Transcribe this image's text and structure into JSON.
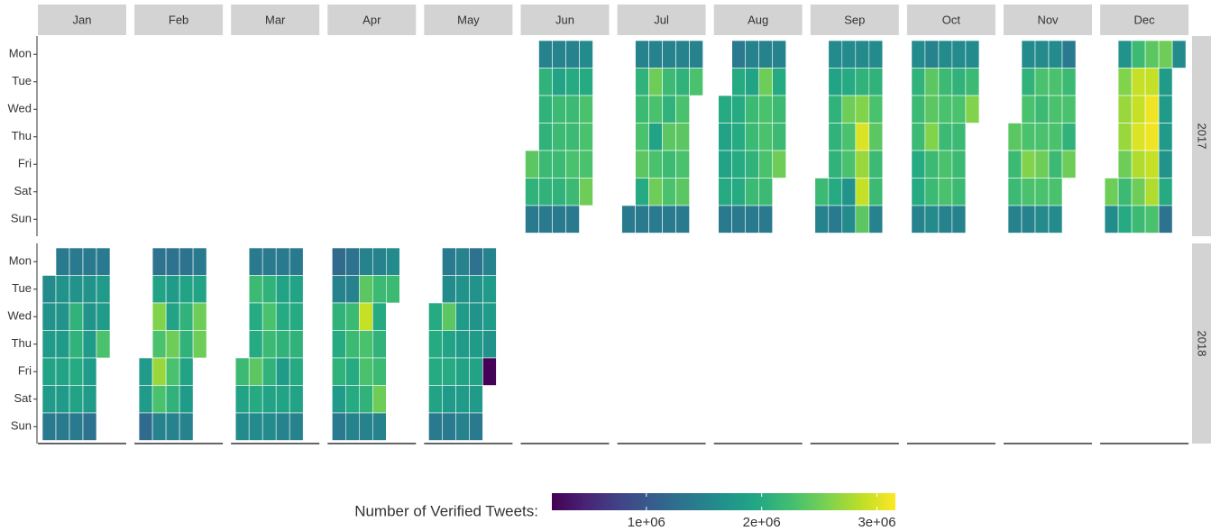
{
  "chart_data": {
    "type": "calendar_heatmap",
    "months": [
      "Jan",
      "Feb",
      "Mar",
      "Apr",
      "May",
      "Jun",
      "Jul",
      "Aug",
      "Sep",
      "Oct",
      "Nov",
      "Dec"
    ],
    "weekdays": [
      "Mon",
      "Tue",
      "Wed",
      "Thu",
      "Fri",
      "Sat",
      "Sun"
    ],
    "legend_title": "Number of Verified Tweets:",
    "clim": [
      180000,
      3160000
    ],
    "cticks": [
      {
        "value": 1000000,
        "label": "1e+06"
      },
      {
        "value": 2000000,
        "label": "2e+06"
      },
      {
        "value": 3000000,
        "label": "3e+06"
      }
    ],
    "colors": [
      "#440154",
      "#482475",
      "#414487",
      "#355f8d",
      "#2a788e",
      "#21918c",
      "#22a884",
      "#44bf70",
      "#7ad151",
      "#bddf26",
      "#fde725"
    ],
    "series": [
      {
        "name": "2017",
        "values": [
          null,
          null,
          null,
          null,
          null,
          [
            [
              null,
              null,
              null,
              null,
              2400000.0,
              2100000.0,
              1400000.0
            ],
            [
              1500000.0,
              2100000.0,
              2100000.0,
              2100000.0,
              2200000.0,
              2100000.0,
              1400000.0
            ],
            [
              1500000.0,
              1900000.0,
              2200000.0,
              2200000.0,
              2200000.0,
              2100000.0,
              1400000.0
            ],
            [
              1500000.0,
              2000000.0,
              2200000.0,
              2200000.0,
              2300000.0,
              2200000.0,
              1400000.0
            ],
            [
              1600000.0,
              2000000.0,
              2300000.0,
              2300000.0,
              2300000.0,
              2500000.0,
              null
            ]
          ],
          [
            [
              null,
              null,
              null,
              null,
              null,
              null,
              1400000.0
            ],
            [
              1500000.0,
              2100000.0,
              2200000.0,
              2300000.0,
              2400000.0,
              2000000.0,
              1400000.0
            ],
            [
              1500000.0,
              2500000.0,
              2300000.0,
              1900000.0,
              2300000.0,
              2500000.0,
              1400000.0
            ],
            [
              1500000.0,
              2200000.0,
              2100000.0,
              2400000.0,
              2200000.0,
              2300000.0,
              1400000.0
            ],
            [
              1500000.0,
              2100000.0,
              2300000.0,
              2400000.0,
              2300000.0,
              2400000.0,
              1400000.0
            ],
            [
              1500000.0,
              2300000.0,
              null,
              null,
              null,
              null,
              null
            ]
          ],
          [
            [
              null,
              null,
              2000000.0,
              1900000.0,
              1900000.0,
              2000000.0,
              1400000.0
            ],
            [
              1400000.0,
              2000000.0,
              2000000.0,
              2000000.0,
              2000000.0,
              2000000.0,
              1400000.0
            ],
            [
              1500000.0,
              1900000.0,
              2200000.0,
              2200000.0,
              2100000.0,
              2200000.0,
              1400000.0
            ],
            [
              1500000.0,
              2500000.0,
              2300000.0,
              2300000.0,
              2300000.0,
              2200000.0,
              1400000.0
            ],
            [
              1500000.0,
              2000000.0,
              2200000.0,
              2200000.0,
              2500000.0,
              null,
              null
            ]
          ],
          [
            [
              null,
              null,
              null,
              null,
              null,
              2200000.0,
              1500000.0
            ],
            [
              1600000.0,
              1900000.0,
              2100000.0,
              2100000.0,
              2100000.0,
              2000000.0,
              1400000.0
            ],
            [
              1600000.0,
              2000000.0,
              2500000.0,
              2300000.0,
              2300000.0,
              1700000.0,
              1600000.0
            ],
            [
              1600000.0,
              2100000.0,
              2600000.0,
              3000000.0,
              2700000.0,
              2900000.0,
              2400000.0
            ],
            [
              1600000.0,
              2100000.0,
              2300000.0,
              2400000.0,
              2200000.0,
              2200000.0,
              1500000.0
            ]
          ],
          [
            [
              1600000.0,
              2100000.0,
              2200000.0,
              2200000.0,
              2000000.0,
              2000000.0,
              1500000.0
            ],
            [
              1500000.0,
              2400000.0,
              2400000.0,
              2600000.0,
              2200000.0,
              2200000.0,
              1600000.0
            ],
            [
              1600000.0,
              2200000.0,
              2300000.0,
              2200000.0,
              2300000.0,
              2300000.0,
              1500000.0
            ],
            [
              1600000.0,
              2100000.0,
              2300000.0,
              2200000.0,
              2200000.0,
              2200000.0,
              1500000.0
            ],
            [
              1600000.0,
              2200000.0,
              2600000.0,
              null,
              null,
              null,
              null
            ]
          ],
          [
            [
              null,
              null,
              null,
              2400000.0,
              2200000.0,
              2200000.0,
              1500000.0
            ],
            [
              1600000.0,
              2100000.0,
              2300000.0,
              2300000.0,
              2600000.0,
              2300000.0,
              1500000.0
            ],
            [
              1600000.0,
              2300000.0,
              2200000.0,
              2300000.0,
              2500000.0,
              2300000.0,
              1600000.0
            ],
            [
              1600000.0,
              2300000.0,
              2300000.0,
              2300000.0,
              2200000.0,
              2300000.0,
              1600000.0
            ],
            [
              1400000.0,
              2200000.0,
              2300000.0,
              2100000.0,
              2500000.0,
              null,
              null
            ]
          ],
          [
            [
              null,
              null,
              null,
              null,
              null,
              2500000.0,
              1600000.0
            ],
            [
              1700000.0,
              2600000.0,
              2700000.0,
              2700000.0,
              2500000.0,
              2200000.0,
              2000000.0
            ],
            [
              2200000.0,
              2900000.0,
              2900000.0,
              3000000.0,
              2800000.0,
              2500000.0,
              2200000.0
            ],
            [
              2400000.0,
              2900000.0,
              3100000.0,
              3100000.0,
              2900000.0,
              2800000.0,
              2300000.0
            ],
            [
              2500000.0,
              1800000.0,
              1800000.0,
              1800000.0,
              1700000.0,
              2000000.0,
              1300000.0
            ],
            [
              1600000.0,
              null,
              null,
              null,
              null,
              null,
              null
            ]
          ]
        ]
      },
      {
        "name": "2018",
        "values": [
          [
            [
              null,
              1600000.0,
              1700000.0,
              1800000.0,
              1900000.0,
              1800000.0,
              1400000.0
            ],
            [
              1400000.0,
              1700000.0,
              1700000.0,
              1800000.0,
              1900000.0,
              1800000.0,
              1400000.0
            ],
            [
              1400000.0,
              1700000.0,
              2100000.0,
              2100000.0,
              2000000.0,
              1900000.0,
              1400000.0
            ],
            [
              1400000.0,
              1700000.0,
              1700000.0,
              1800000.0,
              1800000.0,
              1800000.0,
              1300000.0
            ],
            [
              1400000.0,
              1800000.0,
              1800000.0,
              2300000.0,
              null,
              null,
              null
            ]
          ],
          [
            [
              null,
              null,
              null,
              null,
              1800000.0,
              1800000.0,
              1200000.0
            ],
            [
              1300000.0,
              1900000.0,
              2600000.0,
              2300000.0,
              2700000.0,
              2300000.0,
              1500000.0
            ],
            [
              1300000.0,
              1800000.0,
              1900000.0,
              2500000.0,
              2300000.0,
              2100000.0,
              1500000.0
            ],
            [
              1300000.0,
              1900000.0,
              2100000.0,
              2100000.0,
              1900000.0,
              1800000.0,
              1500000.0
            ],
            [
              1400000.0,
              1900000.0,
              2500000.0,
              2500000.0,
              null,
              null,
              null
            ]
          ],
          [
            [
              null,
              null,
              null,
              null,
              2200000.0,
              1900000.0,
              1600000.0
            ],
            [
              1400000.0,
              2200000.0,
              2000000.0,
              2000000.0,
              2400000.0,
              2000000.0,
              1600000.0
            ],
            [
              1400000.0,
              2100000.0,
              2300000.0,
              2200000.0,
              2100000.0,
              1900000.0,
              1600000.0
            ],
            [
              1400000.0,
              1900000.0,
              2000000.0,
              2100000.0,
              1800000.0,
              1900000.0,
              1500000.0
            ],
            [
              1400000.0,
              1900000.0,
              2000000.0,
              2100000.0,
              2000000.0,
              1900000.0,
              1500000.0
            ]
          ],
          [
            [
              1200000.0,
              1500000.0,
              2100000.0,
              2000000.0,
              2100000.0,
              1800000.0,
              1400000.0
            ],
            [
              1300000.0,
              1500000.0,
              2200000.0,
              2200000.0,
              2000000.0,
              2000000.0,
              1500000.0
            ],
            [
              1500000.0,
              2400000.0,
              2900000.0,
              2300000.0,
              2300000.0,
              2100000.0,
              1500000.0
            ],
            [
              1500000.0,
              2200000.0,
              2000000.0,
              2100000.0,
              2200000.0,
              2500000.0,
              1500000.0
            ],
            [
              1600000.0,
              2200000.0,
              null,
              null,
              null,
              null,
              null
            ]
          ],
          [
            [
              null,
              null,
              2000000.0,
              2000000.0,
              2000000.0,
              1900000.0,
              1400000.0
            ],
            [
              1400000.0,
              1600000.0,
              2400000.0,
              1900000.0,
              2000000.0,
              1800000.0,
              1400000.0
            ],
            [
              1500000.0,
              1700000.0,
              1800000.0,
              1800000.0,
              1900000.0,
              1800000.0,
              1500000.0
            ],
            [
              1300000.0,
              1700000.0,
              1700000.0,
              1800000.0,
              1900000.0,
              1800000.0,
              1400000.0
            ],
            [
              1500000.0,
              1800000.0,
              1800000.0,
              1700000.0,
              200000.0,
              null,
              null
            ]
          ],
          null,
          null,
          null,
          null,
          null,
          null,
          null
        ]
      }
    ]
  }
}
